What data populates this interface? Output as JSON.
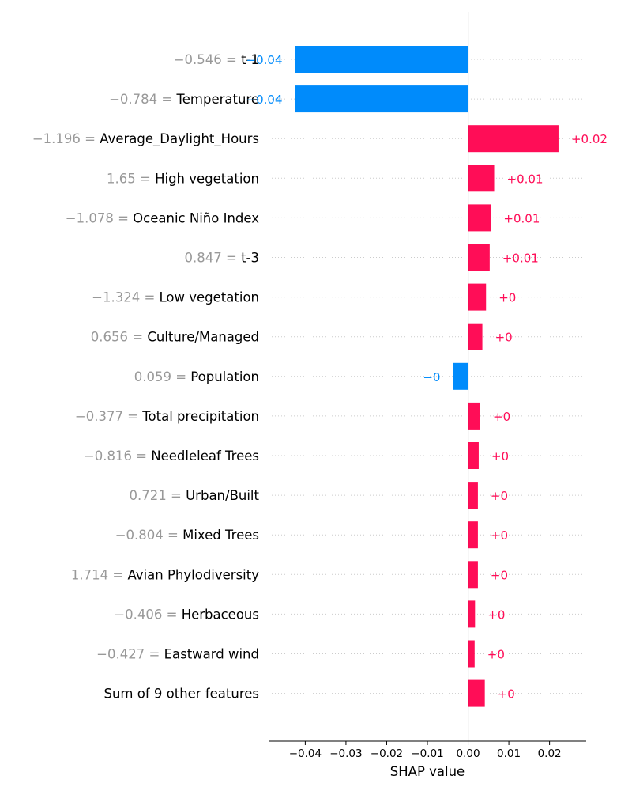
{
  "chart_data": {
    "type": "bar",
    "orientation": "horizontal",
    "xlabel": "SHAP value",
    "xlim": [
      -0.049,
      0.029
    ],
    "xticks": [
      -0.04,
      -0.03,
      -0.02,
      -0.01,
      0.0,
      0.01,
      0.02
    ],
    "xtick_labels": [
      "−0.04",
      "−0.03",
      "−0.02",
      "−0.01",
      "0.00",
      "0.01",
      "0.02"
    ],
    "grid": "dotted-per-row",
    "colors": {
      "positive": "#ff0d57",
      "negative": "#008bfb"
    },
    "features": [
      {
        "value": "−0.546",
        "name": "t-1",
        "shap": -0.0425,
        "label": "−0.04"
      },
      {
        "value": "−0.784",
        "name": "Temperature",
        "shap": -0.0425,
        "label": "−0.04"
      },
      {
        "value": "−1.196",
        "name": "Average_Daylight_Hours",
        "shap": 0.0222,
        "label": "+0.02"
      },
      {
        "value": "1.65",
        "name": "High vegetation",
        "shap": 0.0064,
        "label": "+0.01"
      },
      {
        "value": "−1.078",
        "name": "Oceanic Niño Index",
        "shap": 0.0056,
        "label": "+0.01"
      },
      {
        "value": "0.847",
        "name": "t-3",
        "shap": 0.0053,
        "label": "+0.01"
      },
      {
        "value": "−1.324",
        "name": "Low vegetation",
        "shap": 0.0044,
        "label": "+0"
      },
      {
        "value": "0.656",
        "name": "Culture/Managed",
        "shap": 0.0035,
        "label": "+0"
      },
      {
        "value": "0.059",
        "name": "Population",
        "shap": -0.0037,
        "label": "−0"
      },
      {
        "value": "−0.377",
        "name": "Total precipitation",
        "shap": 0.003,
        "label": "+0"
      },
      {
        "value": "−0.816",
        "name": "Needleleaf Trees",
        "shap": 0.0026,
        "label": "+0"
      },
      {
        "value": "0.721",
        "name": "Urban/Built",
        "shap": 0.0024,
        "label": "+0"
      },
      {
        "value": "−0.804",
        "name": "Mixed Trees",
        "shap": 0.0024,
        "label": "+0"
      },
      {
        "value": "1.714",
        "name": "Avian Phylodiversity",
        "shap": 0.0024,
        "label": "+0"
      },
      {
        "value": "−0.406",
        "name": "Herbaceous",
        "shap": 0.0017,
        "label": "+0"
      },
      {
        "value": "−0.427",
        "name": "Eastward wind",
        "shap": 0.0016,
        "label": "+0"
      },
      {
        "value": "",
        "name": "Sum of 9 other features",
        "shap": 0.0041,
        "label": "+0"
      }
    ]
  }
}
